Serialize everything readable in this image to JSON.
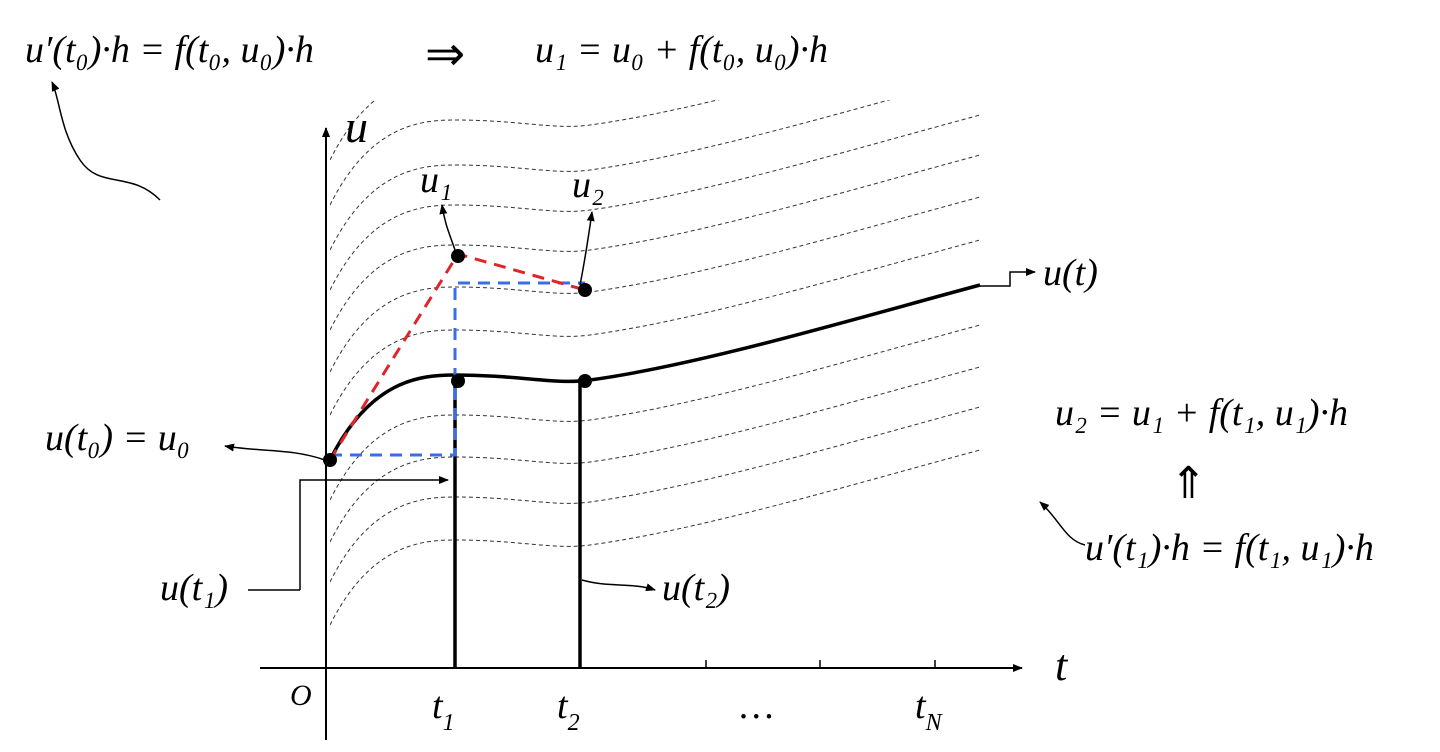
{
  "equations": {
    "top_left": "u′(t₀)·h = f(t₀, u₀)·h",
    "implies": "⇒",
    "top_right": "u₁ = u₀ + f(t₀, u₀)·h",
    "right_upper": "u₂ = u₁ + f(t₁, u₁)·h",
    "implied_by": "⇑",
    "right_lower": "u′(t₁)·h = f(t₁, u₁)·h"
  },
  "axes": {
    "y_label": "u",
    "x_label": "t",
    "origin": "O",
    "x_ticks": [
      {
        "base": "t",
        "sub": "1"
      },
      {
        "base": "t",
        "sub": "2"
      },
      {
        "base": "…",
        "sub": ""
      },
      {
        "base": "t",
        "sub": "N"
      }
    ]
  },
  "labels": {
    "u1": "u₁",
    "u2": "u₂",
    "solution": "u(t)",
    "initial": "u(t₀) = u₀",
    "u_t1": "u(t₁)",
    "u_t2": "u(t₂)"
  }
}
